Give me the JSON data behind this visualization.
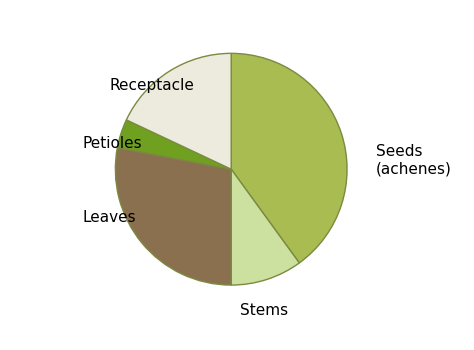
{
  "labels": [
    "Seeds\n(achenes)",
    "Stems",
    "Leaves",
    "Petioles",
    "Receptacle"
  ],
  "sizes": [
    40,
    10,
    28,
    4,
    18
  ],
  "colors": [
    "#a8bc52",
    "#cce0a0",
    "#8b7050",
    "#6fa020",
    "#edeade"
  ],
  "startangle": 90,
  "counterclock": false,
  "edge_color": "#7a8a40",
  "edge_width": 1.0,
  "background_color": "#ffffff",
  "fontsize": 11,
  "label_offsets": {
    "Seeds\n(achenes)": [
      1.25,
      0.08,
      "left"
    ],
    "Stems": [
      0.28,
      -1.22,
      "center"
    ],
    "Leaves": [
      -1.28,
      -0.42,
      "left"
    ],
    "Petioles": [
      -1.28,
      0.22,
      "left"
    ],
    "Receptacle": [
      -1.05,
      0.72,
      "left"
    ]
  }
}
